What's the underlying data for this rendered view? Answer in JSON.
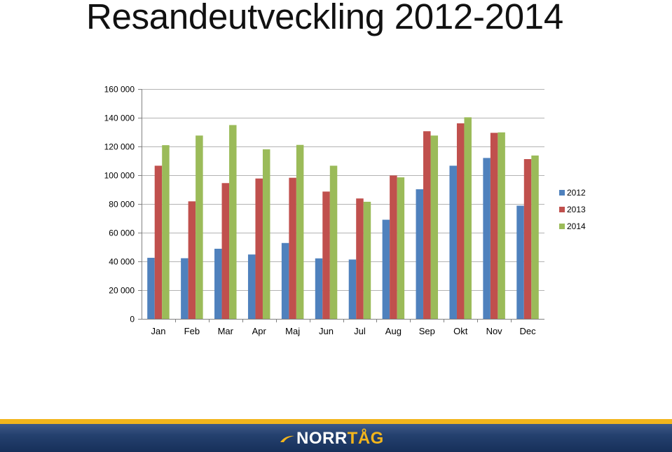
{
  "title": "Resandeutveckling 2012-2014",
  "logo": {
    "text": "NORR",
    "accent": "TÅG"
  },
  "colors": {
    "2012": "#4f81bd",
    "2013": "#c0504d",
    "2014": "#9bbb59",
    "brand_gold": "#f2b51c",
    "brand_navy": "#1f3864"
  },
  "chart_data": {
    "type": "bar",
    "categories": [
      "Jan",
      "Feb",
      "Mar",
      "Apr",
      "Maj",
      "Jun",
      "Jul",
      "Aug",
      "Sep",
      "Okt",
      "Nov",
      "Dec"
    ],
    "series": [
      {
        "name": "2012",
        "values": [
          42500,
          42200,
          48800,
          44800,
          52800,
          42100,
          41300,
          69000,
          90200,
          106600,
          112000,
          78800
        ]
      },
      {
        "name": "2013",
        "values": [
          106600,
          81800,
          94500,
          97700,
          98200,
          88600,
          83800,
          99800,
          130600,
          136100,
          129500,
          111200
        ]
      },
      {
        "name": "2014",
        "values": [
          120900,
          127600,
          134900,
          118000,
          121100,
          106600,
          81500,
          98500,
          127600,
          140300,
          129800,
          113700
        ]
      }
    ],
    "y_ticks": [
      "0",
      "20 000",
      "40 000",
      "60 000",
      "80 000",
      "100 000",
      "120 000",
      "140 000",
      "160 000"
    ],
    "ylim": [
      0,
      160000
    ],
    "y_step": 20000,
    "grid": true,
    "legend": "right"
  }
}
